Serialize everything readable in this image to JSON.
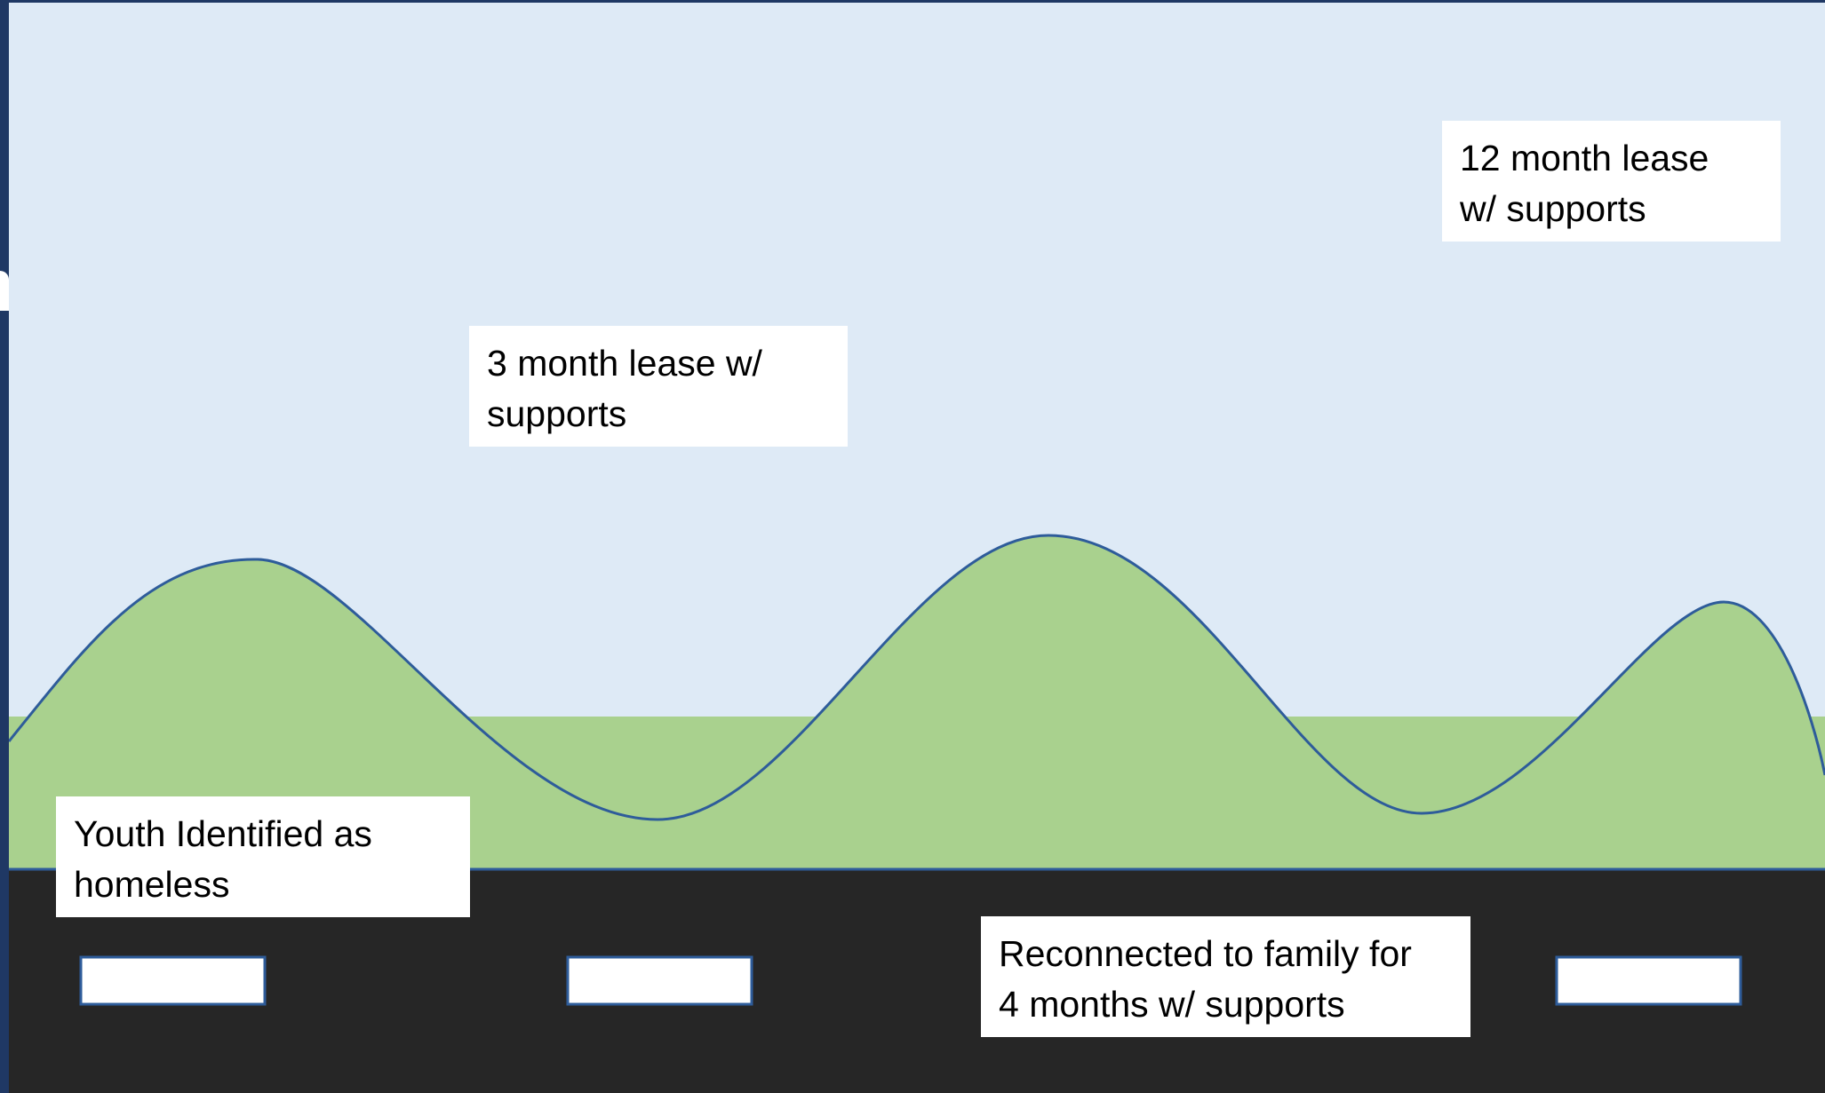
{
  "milestones": [
    {
      "key": "youth",
      "text": "Youth Identified as\nhomeless"
    },
    {
      "key": "lease3",
      "text": "3 month lease w/\nsupports"
    },
    {
      "key": "family",
      "text": "Reconnected to family for\n4 months w/ supports"
    },
    {
      "key": "lease12",
      "text": "12 month lease\nw/ supports"
    }
  ],
  "colors": {
    "sky": "#deeaf6",
    "hills": "#a9d18e",
    "road": "#262626",
    "outline": "#2e5c9a",
    "box": "#ffffff"
  }
}
